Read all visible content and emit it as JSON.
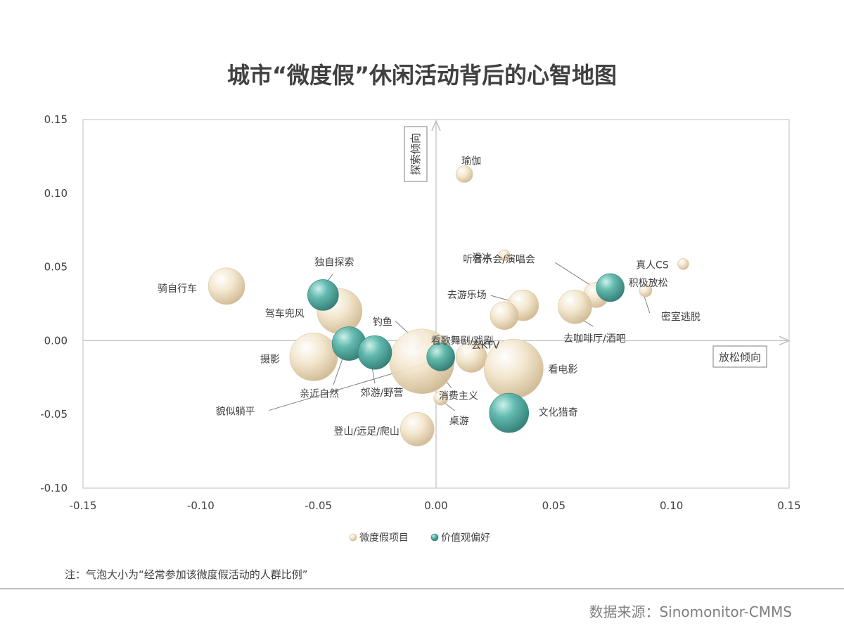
{
  "page": {
    "title": "城市“微度假”休闲活动背后的心智地图",
    "footnote": "注：气泡大小为“经常参加该微度假活动的人群比例”",
    "source": "数据来源：Sinomonitor-CMMS"
  },
  "colors": {
    "project_bubble": "#e9d9b8",
    "value_bubble": "#3f9e94",
    "axis": "#bfbfbf",
    "text": "#404040"
  },
  "chart_data": {
    "type": "scatter",
    "xlim": [
      -0.15,
      0.15
    ],
    "ylim": [
      -0.1,
      0.15
    ],
    "x_ticks": [
      "-0.15",
      "-0.10",
      "-0.05",
      "0.00",
      "0.05",
      "0.10",
      "0.15"
    ],
    "y_ticks": [
      "0.15",
      "0.10",
      "0.05",
      "0.00",
      "-0.05",
      "-0.10"
    ],
    "axis_annotations": {
      "up": "探索倾向",
      "right": "放松倾向"
    },
    "legend": [
      "微度假项目",
      "价值观偏好"
    ],
    "legend_position": "bottom",
    "series": [
      {
        "name": "微度假项目",
        "color": "#e9d9b8",
        "points": [
          {
            "label": "瑜伽",
            "x": 0.012,
            "y": 0.113,
            "size": 1.2
          },
          {
            "label": "滑冰",
            "x": 0.029,
            "y": 0.058,
            "size": 0.8
          },
          {
            "label": "真人CS",
            "x": 0.105,
            "y": 0.052,
            "size": 0.8
          },
          {
            "label": "密室逃脱",
            "x": 0.089,
            "y": 0.034,
            "size": 0.9
          },
          {
            "label": "骑自行车",
            "x": -0.089,
            "y": 0.037,
            "size": 2.6
          },
          {
            "label": "驾车兜风",
            "x": -0.041,
            "y": 0.02,
            "size": 3.2
          },
          {
            "label": "听音乐会/演唱会",
            "x": 0.068,
            "y": 0.031,
            "size": 1.8
          },
          {
            "label": "去游乐场",
            "x": 0.037,
            "y": 0.024,
            "size": 2.2
          },
          {
            "label": "去咖啡厅/酒吧",
            "x": 0.059,
            "y": 0.023,
            "size": 2.4
          },
          {
            "label": "看歌舞剧/戏剧",
            "x": 0.029,
            "y": 0.017,
            "size": 2.0
          },
          {
            "label": "钓鱼",
            "x": -0.009,
            "y": 0.0,
            "size": 1.4
          },
          {
            "label": "去KTV",
            "x": 0.015,
            "y": -0.011,
            "size": 2.2
          },
          {
            "label": "看电影",
            "x": 0.033,
            "y": -0.019,
            "size": 4.2
          },
          {
            "label": "摄影",
            "x": -0.052,
            "y": -0.011,
            "size": 3.4
          },
          {
            "label": "桌游",
            "x": 0.002,
            "y": -0.039,
            "size": 1.0
          },
          {
            "label": "消费主义",
            "x": -0.006,
            "y": -0.014,
            "size": 4.6
          },
          {
            "label": "登山/远足/爬山",
            "x": -0.008,
            "y": -0.06,
            "size": 2.4
          }
        ]
      },
      {
        "name": "价值观偏好",
        "color": "#3f9e94",
        "points": [
          {
            "label": "独自探索",
            "x": -0.048,
            "y": 0.031,
            "size": 2.2
          },
          {
            "label": "积极放松",
            "x": 0.074,
            "y": 0.036,
            "size": 2.0
          },
          {
            "label": "亲近自然",
            "x": -0.037,
            "y": -0.002,
            "size": 2.4
          },
          {
            "label": "郊游/野营",
            "x": -0.026,
            "y": -0.008,
            "size": 2.4
          },
          {
            "label": "貌似躺平",
            "x": 0.002,
            "y": -0.011,
            "size": 2.0
          },
          {
            "label": "文化猎奇",
            "x": 0.031,
            "y": -0.049,
            "size": 2.8
          }
        ]
      }
    ]
  }
}
